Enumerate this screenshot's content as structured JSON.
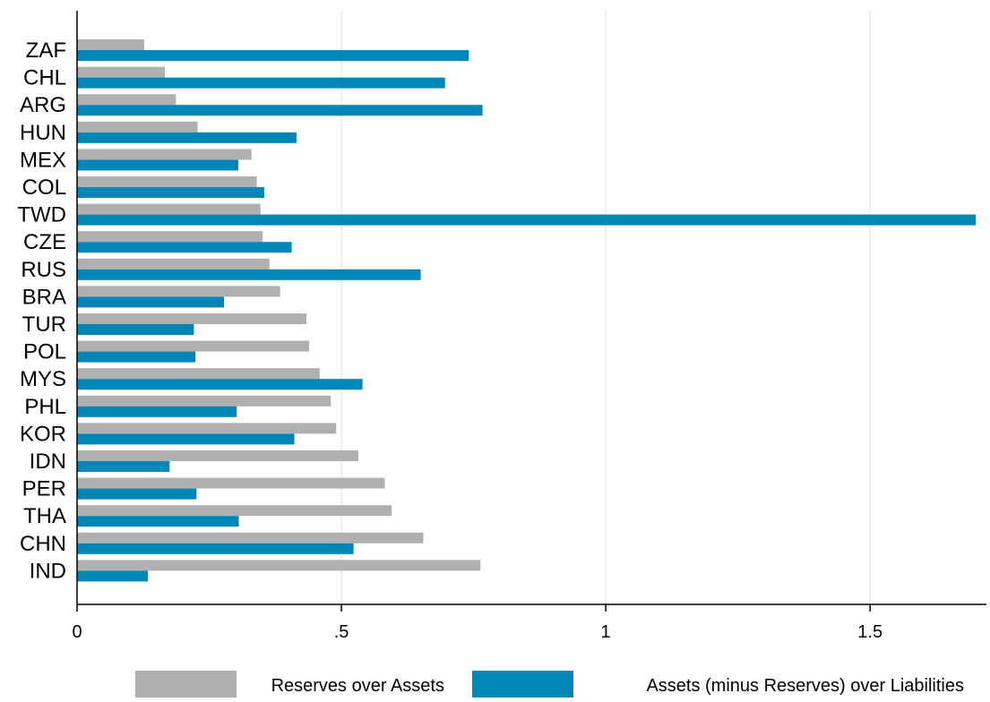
{
  "chart_data": {
    "type": "bar",
    "orientation": "horizontal",
    "title": "",
    "xlabel": "",
    "ylabel": "",
    "xlim": [
      0,
      1.72
    ],
    "grid": true,
    "legend_position": "bottom",
    "x_ticks": [
      {
        "value": 0,
        "label": "0"
      },
      {
        "value": 0.5,
        "label": ".5"
      },
      {
        "value": 1,
        "label": "1"
      },
      {
        "value": 1.5,
        "label": "1.5"
      }
    ],
    "categories": [
      "ZAF",
      "CHL",
      "ARG",
      "HUN",
      "MEX",
      "COL",
      "TWD",
      "CZE",
      "RUS",
      "BRA",
      "TUR",
      "POL",
      "MYS",
      "PHL",
      "KOR",
      "IDN",
      "PER",
      "THA",
      "CHN",
      "IND"
    ],
    "series": [
      {
        "name": "Reserves over Assets",
        "color": "#b0b0b0",
        "values": [
          0.127,
          0.166,
          0.187,
          0.228,
          0.33,
          0.34,
          0.347,
          0.351,
          0.364,
          0.384,
          0.434,
          0.439,
          0.459,
          0.48,
          0.49,
          0.532,
          0.582,
          0.595,
          0.655,
          0.763
        ]
      },
      {
        "name": "Assets (minus Reserves) over Liabilities",
        "color": "#0087b8",
        "values": [
          0.741,
          0.696,
          0.767,
          0.415,
          0.305,
          0.354,
          1.7,
          0.406,
          0.65,
          0.278,
          0.221,
          0.224,
          0.54,
          0.302,
          0.411,
          0.175,
          0.226,
          0.306,
          0.523,
          0.134
        ]
      }
    ]
  }
}
